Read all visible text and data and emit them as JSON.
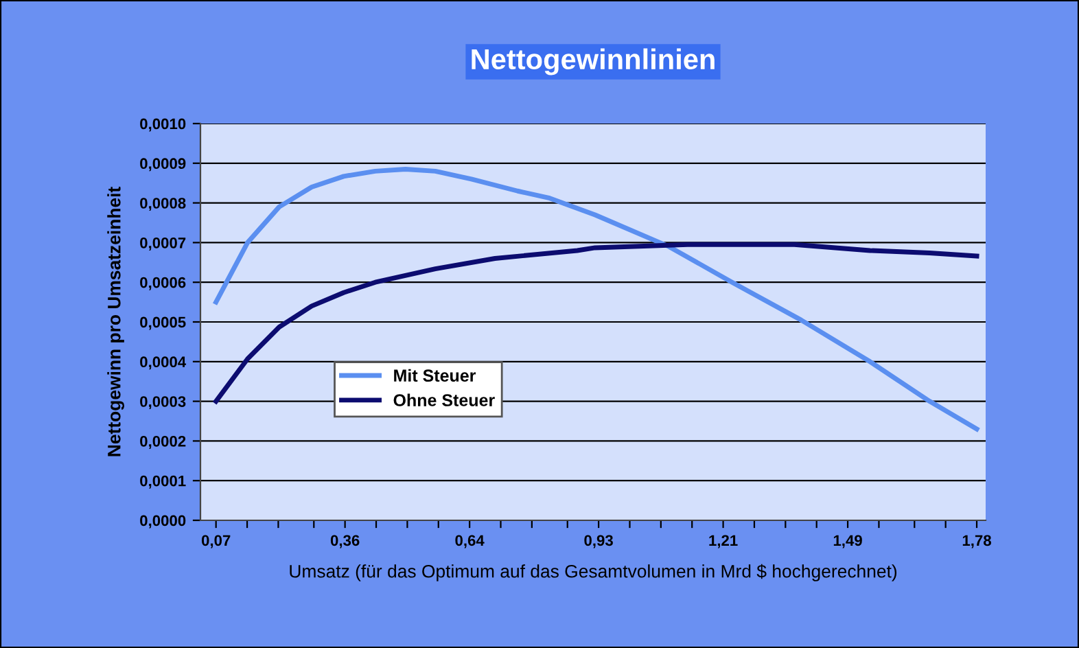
{
  "chart_data": {
    "type": "line",
    "title": "Nettogewinnlinien",
    "xlabel": "Umsatz (für das Optimum auf das Gesamtvolumen in Mrd $ hochgerechnet)",
    "ylabel": "Nettogewinn pro Umsatzeinheit",
    "series": [
      {
        "name": "Mit Steuer",
        "color": "#5b8ff0",
        "x": [
          0.07,
          0.141,
          0.212,
          0.285,
          0.357,
          0.428,
          0.496,
          0.563,
          0.644,
          0.748,
          0.82,
          0.922,
          1.088,
          1.23,
          1.385,
          1.54,
          1.674,
          1.78
        ],
        "values": [
          0.00055,
          0.0007,
          0.00079,
          0.00084,
          0.000867,
          0.00088,
          0.000885,
          0.00088,
          0.00086,
          0.00083,
          0.000812,
          0.00077,
          0.00069,
          0.0006,
          0.000505,
          0.0004,
          0.0003,
          0.00023
        ]
      },
      {
        "name": "Ohne Steuer",
        "color": "#0c0c70",
        "x": [
          0.07,
          0.141,
          0.212,
          0.285,
          0.357,
          0.428,
          0.563,
          0.697,
          0.882,
          0.922,
          1.13,
          1.37,
          1.54,
          1.674,
          1.78
        ],
        "values": [
          0.0003,
          0.000407,
          0.000487,
          0.00054,
          0.000574,
          0.0006,
          0.000634,
          0.00066,
          0.00068,
          0.000687,
          0.000695,
          0.000695,
          0.00068,
          0.000674,
          0.000666
        ]
      }
    ],
    "xlim": [
      0.035,
      1.8
    ],
    "xticks": [
      {
        "value": 0.07,
        "label": "0,07"
      },
      {
        "value": 0.14,
        "label": null
      },
      {
        "value": 0.21,
        "label": null
      },
      {
        "value": 0.29,
        "label": null
      },
      {
        "value": 0.36,
        "label": "0,36"
      },
      {
        "value": 0.43,
        "label": null
      },
      {
        "value": 0.5,
        "label": null
      },
      {
        "value": 0.57,
        "label": null
      },
      {
        "value": 0.64,
        "label": "0,64"
      },
      {
        "value": 0.71,
        "label": null
      },
      {
        "value": 0.78,
        "label": null
      },
      {
        "value": 0.86,
        "label": null
      },
      {
        "value": 0.93,
        "label": "0,93"
      },
      {
        "value": 1.0,
        "label": null
      },
      {
        "value": 1.07,
        "label": null
      },
      {
        "value": 1.14,
        "label": null
      },
      {
        "value": 1.21,
        "label": "1,21"
      },
      {
        "value": 1.28,
        "label": null
      },
      {
        "value": 1.35,
        "label": null
      },
      {
        "value": 1.42,
        "label": null
      },
      {
        "value": 1.49,
        "label": "1,49"
      },
      {
        "value": 1.56,
        "label": null
      },
      {
        "value": 1.64,
        "label": null
      },
      {
        "value": 1.71,
        "label": null
      },
      {
        "value": 1.78,
        "label": "1,78"
      }
    ],
    "ylim": [
      0,
      0.001
    ],
    "yticks": [
      {
        "value": 0,
        "label": "0,0000"
      },
      {
        "value": 0.0001,
        "label": "0,0001"
      },
      {
        "value": 0.0002,
        "label": "0,0002"
      },
      {
        "value": 0.0003,
        "label": "0,0003"
      },
      {
        "value": 0.0004,
        "label": "0,0004"
      },
      {
        "value": 0.0005,
        "label": "0,0005"
      },
      {
        "value": 0.0006,
        "label": "0,0006"
      },
      {
        "value": 0.0007,
        "label": "0,0007"
      },
      {
        "value": 0.0008,
        "label": "0,0008"
      },
      {
        "value": 0.0009,
        "label": "0,0009"
      },
      {
        "value": 0.001,
        "label": "0,0010"
      }
    ],
    "grid": "y",
    "legend": "left",
    "line_style": "solid"
  }
}
